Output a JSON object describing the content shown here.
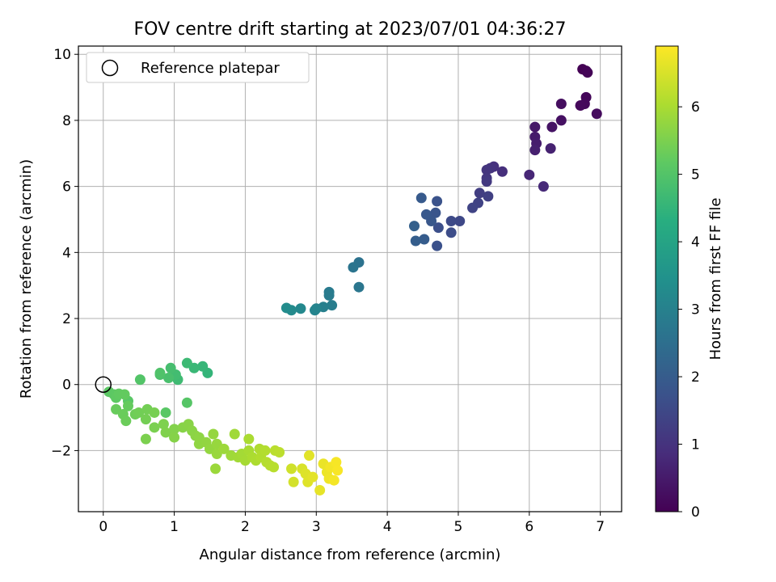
{
  "chart_data": {
    "type": "scatter",
    "title": "FOV centre drift starting at 2023/07/01 04:36:27",
    "xlabel": "Angular distance from reference (arcmin)",
    "ylabel": "Rotation from reference (arcmin)",
    "xlim": [
      -0.35,
      7.3
    ],
    "ylim": [
      -3.85,
      10.25
    ],
    "xticks": [
      0,
      1,
      2,
      3,
      4,
      5,
      6,
      7
    ],
    "yticks": [
      -2,
      0,
      2,
      4,
      6,
      8,
      10
    ],
    "grid": true,
    "legend": {
      "location": "upper-left",
      "entries": [
        "Reference platepar"
      ]
    },
    "colorbar": {
      "label": "Hours from first FF file",
      "min": 0,
      "max": 6.9,
      "ticks": [
        0,
        1,
        2,
        3,
        4,
        5,
        6
      ],
      "colormap": "viridis"
    },
    "reference": {
      "x": 0,
      "y": 0
    },
    "points": [
      {
        "x": 6.75,
        "y": 9.55,
        "t": 0.0
      },
      {
        "x": 6.8,
        "y": 9.5,
        "t": 0.03
      },
      {
        "x": 6.82,
        "y": 9.45,
        "t": 0.06
      },
      {
        "x": 6.8,
        "y": 8.7,
        "t": 0.1
      },
      {
        "x": 6.78,
        "y": 8.5,
        "t": 0.13
      },
      {
        "x": 6.72,
        "y": 8.45,
        "t": 0.16
      },
      {
        "x": 6.95,
        "y": 8.2,
        "t": 0.2
      },
      {
        "x": 6.45,
        "y": 8.5,
        "t": 0.25
      },
      {
        "x": 6.45,
        "y": 8.0,
        "t": 0.3
      },
      {
        "x": 6.32,
        "y": 7.8,
        "t": 0.35
      },
      {
        "x": 6.08,
        "y": 7.8,
        "t": 0.45
      },
      {
        "x": 6.08,
        "y": 7.5,
        "t": 0.5
      },
      {
        "x": 6.1,
        "y": 7.3,
        "t": 0.55
      },
      {
        "x": 6.08,
        "y": 7.1,
        "t": 0.6
      },
      {
        "x": 6.3,
        "y": 7.15,
        "t": 0.65
      },
      {
        "x": 6.0,
        "y": 6.35,
        "t": 0.75
      },
      {
        "x": 6.2,
        "y": 6.0,
        "t": 0.8
      },
      {
        "x": 5.62,
        "y": 6.45,
        "t": 0.9
      },
      {
        "x": 5.5,
        "y": 6.6,
        "t": 0.95
      },
      {
        "x": 5.45,
        "y": 6.55,
        "t": 1.0
      },
      {
        "x": 5.4,
        "y": 6.5,
        "t": 1.05
      },
      {
        "x": 5.4,
        "y": 6.25,
        "t": 1.1
      },
      {
        "x": 5.4,
        "y": 6.15,
        "t": 1.15
      },
      {
        "x": 5.3,
        "y": 5.8,
        "t": 1.25
      },
      {
        "x": 5.42,
        "y": 5.7,
        "t": 1.3
      },
      {
        "x": 5.28,
        "y": 5.5,
        "t": 1.35
      },
      {
        "x": 5.2,
        "y": 5.35,
        "t": 1.4
      },
      {
        "x": 5.02,
        "y": 4.95,
        "t": 1.5
      },
      {
        "x": 4.9,
        "y": 4.95,
        "t": 1.55
      },
      {
        "x": 4.9,
        "y": 4.6,
        "t": 1.6
      },
      {
        "x": 4.72,
        "y": 4.75,
        "t": 1.65
      },
      {
        "x": 4.7,
        "y": 4.2,
        "t": 1.7
      },
      {
        "x": 4.7,
        "y": 5.55,
        "t": 1.75
      },
      {
        "x": 4.68,
        "y": 5.2,
        "t": 1.8
      },
      {
        "x": 4.62,
        "y": 4.95,
        "t": 1.85
      },
      {
        "x": 4.55,
        "y": 5.15,
        "t": 1.9
      },
      {
        "x": 4.48,
        "y": 5.65,
        "t": 1.95
      },
      {
        "x": 4.52,
        "y": 4.4,
        "t": 2.0
      },
      {
        "x": 4.4,
        "y": 4.35,
        "t": 2.05
      },
      {
        "x": 4.38,
        "y": 4.8,
        "t": 2.1
      },
      {
        "x": 3.6,
        "y": 3.7,
        "t": 2.6
      },
      {
        "x": 3.52,
        "y": 3.55,
        "t": 2.65
      },
      {
        "x": 3.6,
        "y": 2.95,
        "t": 2.7
      },
      {
        "x": 3.18,
        "y": 2.8,
        "t": 2.8
      },
      {
        "x": 3.18,
        "y": 2.7,
        "t": 2.85
      },
      {
        "x": 3.22,
        "y": 2.4,
        "t": 2.9
      },
      {
        "x": 3.1,
        "y": 2.35,
        "t": 2.95
      },
      {
        "x": 3.0,
        "y": 2.3,
        "t": 3.05
      },
      {
        "x": 2.98,
        "y": 2.25,
        "t": 3.1
      },
      {
        "x": 2.78,
        "y": 2.3,
        "t": 3.2
      },
      {
        "x": 2.65,
        "y": 2.25,
        "t": 3.25
      },
      {
        "x": 2.58,
        "y": 2.32,
        "t": 3.3
      },
      {
        "x": 1.47,
        "y": 0.35,
        "t": 4.5
      },
      {
        "x": 1.4,
        "y": 0.55,
        "t": 4.55
      },
      {
        "x": 1.28,
        "y": 0.5,
        "t": 4.6
      },
      {
        "x": 1.18,
        "y": 0.65,
        "t": 4.65
      },
      {
        "x": 1.05,
        "y": 0.15,
        "t": 4.7
      },
      {
        "x": 1.02,
        "y": 0.3,
        "t": 4.75
      },
      {
        "x": 0.95,
        "y": 0.5,
        "t": 4.8
      },
      {
        "x": 0.92,
        "y": 0.2,
        "t": 4.85
      },
      {
        "x": 0.8,
        "y": 0.3,
        "t": 4.9
      },
      {
        "x": 0.8,
        "y": 0.35,
        "t": 4.95
      },
      {
        "x": 0.52,
        "y": 0.15,
        "t": 5.0
      },
      {
        "x": 1.18,
        "y": -0.55,
        "t": 5.05
      },
      {
        "x": 0.88,
        "y": -0.85,
        "t": 5.1
      },
      {
        "x": 0.35,
        "y": -0.5,
        "t": 5.1
      },
      {
        "x": 0.08,
        "y": -0.22,
        "t": 5.12
      },
      {
        "x": 0.15,
        "y": -0.3,
        "t": 5.15
      },
      {
        "x": 0.18,
        "y": -0.4,
        "t": 5.18
      },
      {
        "x": 0.22,
        "y": -0.28,
        "t": 5.2
      },
      {
        "x": 0.3,
        "y": -0.3,
        "t": 5.22
      },
      {
        "x": 0.35,
        "y": -0.65,
        "t": 5.25
      },
      {
        "x": 0.18,
        "y": -0.75,
        "t": 5.28
      },
      {
        "x": 0.28,
        "y": -0.9,
        "t": 5.3
      },
      {
        "x": 0.32,
        "y": -1.1,
        "t": 5.32
      },
      {
        "x": 0.45,
        "y": -0.9,
        "t": 5.35
      },
      {
        "x": 0.5,
        "y": -0.85,
        "t": 5.38
      },
      {
        "x": 0.62,
        "y": -0.75,
        "t": 5.4
      },
      {
        "x": 0.6,
        "y": -1.05,
        "t": 5.42
      },
      {
        "x": 0.72,
        "y": -0.85,
        "t": 5.45
      },
      {
        "x": 0.72,
        "y": -1.3,
        "t": 5.48
      },
      {
        "x": 0.6,
        "y": -1.65,
        "t": 5.5
      },
      {
        "x": 0.85,
        "y": -1.2,
        "t": 5.52
      },
      {
        "x": 0.88,
        "y": -1.45,
        "t": 5.55
      },
      {
        "x": 1.0,
        "y": -1.35,
        "t": 5.58
      },
      {
        "x": 1.0,
        "y": -1.6,
        "t": 5.6
      },
      {
        "x": 1.12,
        "y": -1.3,
        "t": 5.62
      },
      {
        "x": 1.2,
        "y": -1.2,
        "t": 5.64
      },
      {
        "x": 1.25,
        "y": -1.4,
        "t": 5.66
      },
      {
        "x": 1.3,
        "y": -1.55,
        "t": 5.68
      },
      {
        "x": 1.35,
        "y": -1.6,
        "t": 5.7
      },
      {
        "x": 1.35,
        "y": -1.8,
        "t": 5.72
      },
      {
        "x": 1.45,
        "y": -1.75,
        "t": 5.74
      },
      {
        "x": 1.5,
        "y": -1.95,
        "t": 5.76
      },
      {
        "x": 1.55,
        "y": -1.5,
        "t": 5.78
      },
      {
        "x": 1.6,
        "y": -1.8,
        "t": 5.8
      },
      {
        "x": 1.6,
        "y": -2.1,
        "t": 5.82
      },
      {
        "x": 1.58,
        "y": -2.55,
        "t": 5.84
      },
      {
        "x": 1.7,
        "y": -1.95,
        "t": 5.86
      },
      {
        "x": 1.8,
        "y": -2.15,
        "t": 5.88
      },
      {
        "x": 1.85,
        "y": -1.5,
        "t": 5.9
      },
      {
        "x": 1.9,
        "y": -2.2,
        "t": 5.92
      },
      {
        "x": 1.95,
        "y": -2.1,
        "t": 5.94
      },
      {
        "x": 2.0,
        "y": -2.3,
        "t": 5.96
      },
      {
        "x": 2.05,
        "y": -2.0,
        "t": 5.98
      },
      {
        "x": 2.05,
        "y": -1.65,
        "t": 6.0
      },
      {
        "x": 2.1,
        "y": -2.2,
        "t": 6.02
      },
      {
        "x": 2.15,
        "y": -2.3,
        "t": 6.04
      },
      {
        "x": 2.2,
        "y": -1.95,
        "t": 6.06
      },
      {
        "x": 2.22,
        "y": -2.2,
        "t": 6.08
      },
      {
        "x": 2.28,
        "y": -2.0,
        "t": 6.1
      },
      {
        "x": 2.3,
        "y": -2.35,
        "t": 6.12
      },
      {
        "x": 2.35,
        "y": -2.45,
        "t": 6.14
      },
      {
        "x": 2.4,
        "y": -2.5,
        "t": 6.16
      },
      {
        "x": 2.42,
        "y": -2.0,
        "t": 6.18
      },
      {
        "x": 2.48,
        "y": -2.05,
        "t": 6.2
      },
      {
        "x": 2.65,
        "y": -2.55,
        "t": 6.4
      },
      {
        "x": 2.68,
        "y": -2.95,
        "t": 6.45
      },
      {
        "x": 2.8,
        "y": -2.55,
        "t": 6.5
      },
      {
        "x": 2.85,
        "y": -2.7,
        "t": 6.55
      },
      {
        "x": 2.88,
        "y": -2.95,
        "t": 6.58
      },
      {
        "x": 2.9,
        "y": -2.15,
        "t": 6.6
      },
      {
        "x": 2.95,
        "y": -2.8,
        "t": 6.62
      },
      {
        "x": 3.05,
        "y": -3.2,
        "t": 6.65
      },
      {
        "x": 3.1,
        "y": -2.4,
        "t": 6.7
      },
      {
        "x": 3.15,
        "y": -2.65,
        "t": 6.72
      },
      {
        "x": 3.18,
        "y": -2.85,
        "t": 6.75
      },
      {
        "x": 3.2,
        "y": -2.5,
        "t": 6.78
      },
      {
        "x": 3.25,
        "y": -2.9,
        "t": 6.8
      },
      {
        "x": 3.28,
        "y": -2.35,
        "t": 6.82
      },
      {
        "x": 3.3,
        "y": -2.6,
        "t": 6.85
      }
    ]
  }
}
